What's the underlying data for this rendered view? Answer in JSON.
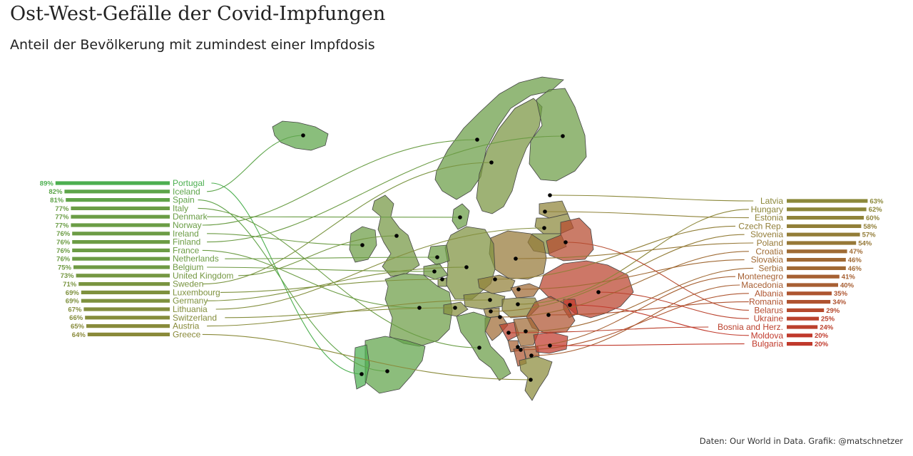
{
  "title": "Ost-West-Gefälle der Covid-Impfungen",
  "subtitle": "Anteil der Bevölkerung mit zumindest einer Impfdosis",
  "credit": "Daten: Our World in Data. Grafik: @matschnetzer",
  "colors": {
    "high": "#4caf50",
    "mid": "#8a8a3a",
    "low": "#c0392b"
  },
  "chart_data": {
    "type": "bar",
    "unit": "%",
    "series_west": [
      {
        "name": "Portugal",
        "label": "89%",
        "value": 89
      },
      {
        "name": "Iceland",
        "label": "82%",
        "value": 82
      },
      {
        "name": "Spain",
        "label": "81%",
        "value": 81
      },
      {
        "name": "Italy",
        "label": "77%",
        "value": 77
      },
      {
        "name": "Denmark",
        "label": "77%",
        "value": 77
      },
      {
        "name": "Norway",
        "label": "77%",
        "value": 77
      },
      {
        "name": "Ireland",
        "label": "76%",
        "value": 76
      },
      {
        "name": "Finland",
        "label": "76%",
        "value": 76
      },
      {
        "name": "France",
        "label": "76%",
        "value": 76
      },
      {
        "name": "Netherlands",
        "label": "76%",
        "value": 76
      },
      {
        "name": "Belgium",
        "label": "75%",
        "value": 75
      },
      {
        "name": "United Kingdom",
        "label": "73%",
        "value": 73
      },
      {
        "name": "Sweden",
        "label": "71%",
        "value": 71
      },
      {
        "name": "Luxembourg",
        "label": "69%",
        "value": 69
      },
      {
        "name": "Germany",
        "label": "69%",
        "value": 69
      },
      {
        "name": "Lithuania",
        "label": "67%",
        "value": 67
      },
      {
        "name": "Switzerland",
        "label": "66%",
        "value": 66
      },
      {
        "name": "Austria",
        "label": "65%",
        "value": 65
      },
      {
        "name": "Greece",
        "label": "64%",
        "value": 64
      }
    ],
    "series_east": [
      {
        "name": "Latvia",
        "label": "63%",
        "value": 63
      },
      {
        "name": "Hungary",
        "label": "62%",
        "value": 62
      },
      {
        "name": "Estonia",
        "label": "60%",
        "value": 60
      },
      {
        "name": "Czech Rep.",
        "label": "58%",
        "value": 58
      },
      {
        "name": "Slovenia",
        "label": "57%",
        "value": 57
      },
      {
        "name": "Poland",
        "label": "54%",
        "value": 54
      },
      {
        "name": "Croatia",
        "label": "47%",
        "value": 47
      },
      {
        "name": "Slovakia",
        "label": "46%",
        "value": 46
      },
      {
        "name": "Serbia",
        "label": "46%",
        "value": 46
      },
      {
        "name": "Montenegro",
        "label": "41%",
        "value": 41
      },
      {
        "name": "Macedonia",
        "label": "40%",
        "value": 40
      },
      {
        "name": "Albania",
        "label": "35%",
        "value": 35
      },
      {
        "name": "Romania",
        "label": "34%",
        "value": 34
      },
      {
        "name": "Belarus",
        "label": "29%",
        "value": 29
      },
      {
        "name": "Ukraine",
        "label": "25%",
        "value": 25
      },
      {
        "name": "Bosnia and Herz.",
        "label": "24%",
        "value": 24
      },
      {
        "name": "Moldova",
        "label": "20%",
        "value": 20
      },
      {
        "name": "Bulgaria",
        "label": "20%",
        "value": 20
      }
    ]
  }
}
